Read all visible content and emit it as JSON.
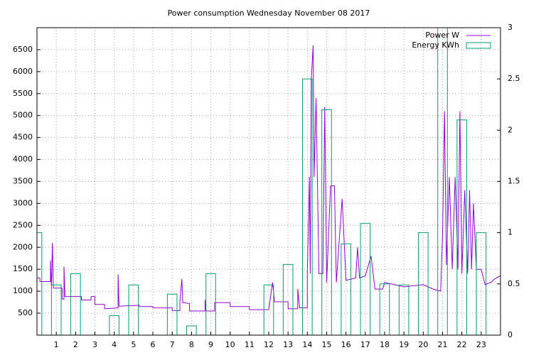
{
  "chart_data": {
    "type": "line",
    "title": "Power consumption Wednesday November 08 2017",
    "xlim": [
      0,
      24
    ],
    "xticks": [
      1,
      2,
      3,
      4,
      5,
      6,
      7,
      8,
      9,
      10,
      11,
      12,
      13,
      14,
      15,
      16,
      17,
      18,
      19,
      20,
      21,
      22,
      23
    ],
    "ylim": [
      0,
      7000
    ],
    "yticks": [
      500,
      1000,
      1500,
      2000,
      2500,
      3000,
      3500,
      4000,
      4500,
      5000,
      5500,
      6000,
      6500
    ],
    "y2lim": [
      0,
      3
    ],
    "y2ticks": [
      0,
      0.5,
      1,
      1.5,
      2,
      2.5,
      3
    ],
    "grid": true,
    "legend": "top-right",
    "series": [
      {
        "name": "Power W",
        "color": "#9400d3",
        "x": [
          0,
          0.15,
          0.15,
          0.7,
          0.7,
          0.75,
          0.8,
          0.85,
          1.3,
          1.3,
          1.4,
          1.4,
          1.45,
          2.3,
          2.3,
          2.8,
          2.8,
          3,
          3,
          3.5,
          3.5,
          4.2,
          4.2,
          4.25,
          5.3,
          5.3,
          6,
          6,
          7,
          7,
          7.4,
          7.4,
          7.5,
          7.55,
          7.9,
          7.9,
          8.7,
          8.7,
          8.75,
          9.2,
          9.2,
          10,
          10,
          11,
          11,
          12,
          12.2,
          12.3,
          13,
          13,
          13.5,
          13.5,
          13.6,
          14,
          14,
          14.1,
          14.15,
          14.2,
          14.3,
          14.35,
          14.45,
          14.6,
          14.8,
          14.9,
          15,
          15.2,
          15.4,
          15.5,
          15.8,
          16,
          16.5,
          16.6,
          16.7,
          17,
          17.3,
          17.5,
          17.9,
          18,
          18.5,
          19,
          20,
          20.5,
          20.9,
          21,
          21.1,
          21.2,
          21.35,
          21.5,
          21.65,
          21.8,
          21.9,
          22,
          22.15,
          22.3,
          22.4,
          22.5,
          22.6,
          22.75,
          23,
          23.2,
          23.5,
          23.7,
          24
        ],
        "values": [
          1300,
          1300,
          1220,
          1220,
          1700,
          1070,
          2100,
          1070,
          1070,
          820,
          820,
          1560,
          880,
          880,
          800,
          800,
          880,
          880,
          700,
          700,
          600,
          620,
          1380,
          660,
          680,
          650,
          650,
          620,
          620,
          560,
          560,
          740,
          1280,
          740,
          720,
          550,
          550,
          800,
          550,
          550,
          740,
          740,
          650,
          650,
          580,
          580,
          1200,
          760,
          760,
          600,
          600,
          1050,
          620,
          620,
          1400,
          3600,
          1400,
          5800,
          6600,
          3600,
          5400,
          1400,
          1400,
          5200,
          1200,
          3400,
          3400,
          1200,
          3100,
          1250,
          1300,
          2000,
          1300,
          1350,
          1800,
          1050,
          1050,
          1200,
          1150,
          1100,
          1150,
          1050,
          1000,
          2300,
          5100,
          1600,
          3600,
          1500,
          3600,
          1500,
          5100,
          1400,
          3300,
          1400,
          3300,
          1500,
          3000,
          1500,
          1500,
          1150,
          1200,
          1280,
          1350
        ]
      },
      {
        "name": "Energy KWh",
        "color": "#009e73",
        "axis": "y2",
        "x": [
          0,
          1,
          2,
          4,
          5,
          7,
          8,
          9,
          12,
          13,
          14,
          15,
          16,
          17,
          18,
          19,
          20,
          21,
          22,
          23
        ],
        "values": [
          1.0,
          0.49,
          0.6,
          0.19,
          0.49,
          0.4,
          0.09,
          0.6,
          0.49,
          0.69,
          2.5,
          2.2,
          0.89,
          1.09,
          0.5,
          0.49,
          1.0,
          3,
          2.1,
          1.0
        ]
      }
    ]
  }
}
